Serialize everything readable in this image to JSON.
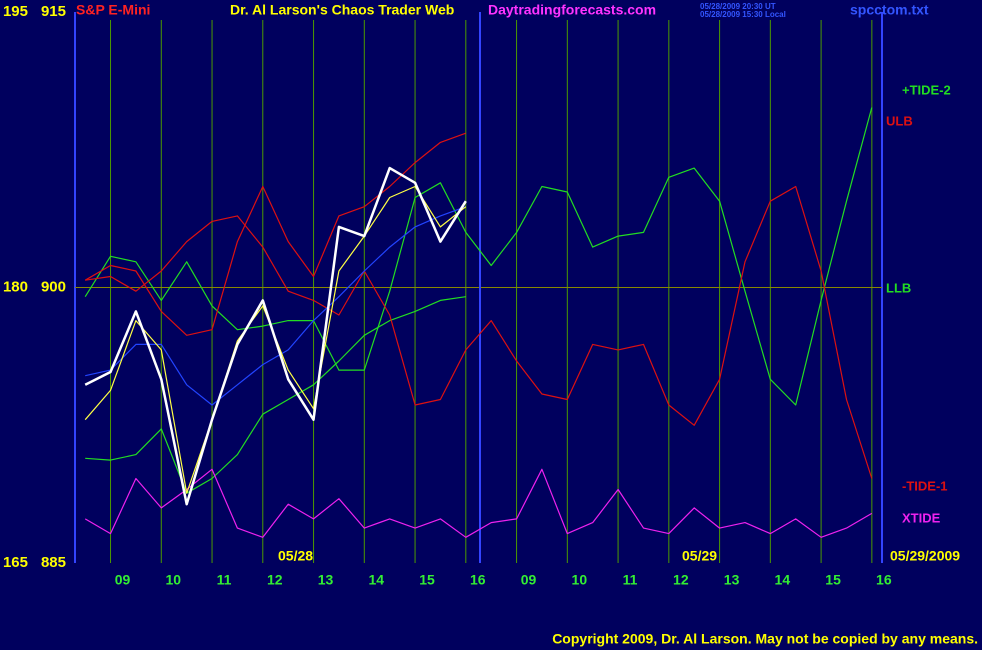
{
  "chart_data": {
    "type": "line",
    "symbol": "S&P E-Mini",
    "title": "Dr. Al Larson's Chaos Trader Web",
    "site": "Daytradingforecasts.com",
    "timestamps": [
      "05/28/2009 20:30 UT",
      "05/28/2009 15:30 Local"
    ],
    "file": "spcctom.txt",
    "annotations": [
      "05/28",
      "05/29",
      "05/29/2009"
    ],
    "copyright": "Copyright 2009, Dr. Al Larson. May not be copied by any means.",
    "xlim": [
      -0.7,
      15.2
    ],
    "xticks": [
      {
        "value": 0,
        "label": "09"
      },
      {
        "value": 1,
        "label": "10"
      },
      {
        "value": 2,
        "label": "11"
      },
      {
        "value": 3,
        "label": "12"
      },
      {
        "value": 4,
        "label": "13"
      },
      {
        "value": 5,
        "label": "14"
      },
      {
        "value": 6,
        "label": "15"
      },
      {
        "value": 7,
        "label": "16"
      },
      {
        "value": 8,
        "label": "09"
      },
      {
        "value": 9,
        "label": "10"
      },
      {
        "value": 10,
        "label": "11"
      },
      {
        "value": 11,
        "label": "12"
      },
      {
        "value": 12,
        "label": "13"
      },
      {
        "value": 13,
        "label": "14"
      },
      {
        "value": 14,
        "label": "15"
      },
      {
        "value": 15,
        "label": "16"
      }
    ],
    "ylim": [
      885,
      915
    ],
    "yticks": [
      885,
      900,
      915
    ],
    "y2lim": [
      165,
      195
    ],
    "y2ticks": [
      165,
      180,
      195
    ],
    "grid": true,
    "x": [
      -0.5,
      0,
      0.5,
      1,
      1.5,
      2,
      2.5,
      3,
      3.5,
      4,
      4.5,
      5,
      5.5,
      6,
      6.5,
      7,
      7.5,
      8,
      8.5,
      9,
      9.5,
      10,
      10.5,
      11,
      11.5,
      12,
      12.5,
      13,
      13.5,
      14,
      14.5,
      15
    ],
    "series": [
      {
        "name": "+TIDE-2",
        "color": "#22dd22",
        "values": [
          899.5,
          901.7,
          901.4,
          899.3,
          901.4,
          899.0,
          897.7,
          897.9,
          898.2,
          898.2,
          895.5,
          895.5,
          899.8,
          904.9,
          905.7,
          903.0,
          901.2,
          903.0,
          905.5,
          905.2,
          902.2,
          902.8,
          903.0,
          906.0,
          906.5,
          904.7,
          899.8,
          895.0,
          893.6,
          899.3,
          904.7,
          909.8
        ]
      },
      {
        "name": "ULB",
        "color": "#dd1111",
        "values": [
          900.4,
          901.2,
          900.9,
          898.7,
          897.4,
          897.7,
          902.5,
          905.5,
          902.5,
          900.6,
          903.9,
          904.4,
          905.5,
          906.8,
          907.9,
          908.4,
          null,
          null,
          null,
          null,
          null,
          null,
          null,
          null,
          null,
          null,
          null,
          null,
          null,
          null,
          null,
          null
        ]
      },
      {
        "name": "LLB",
        "color": "#22dd22",
        "values": [
          890.7,
          890.6,
          890.9,
          892.3,
          888.8,
          889.6,
          890.9,
          893.1,
          893.9,
          894.7,
          896.0,
          897.4,
          898.2,
          898.7,
          899.3,
          899.5,
          null,
          null,
          null,
          null,
          null,
          null,
          null,
          null,
          null,
          null,
          null,
          null,
          null,
          null,
          null,
          null
        ]
      },
      {
        "name": "-TIDE-1",
        "color": "#dd1111",
        "values": [
          900.4,
          900.6,
          899.8,
          900.9,
          902.5,
          903.6,
          903.9,
          902.2,
          899.8,
          899.3,
          898.5,
          900.9,
          898.5,
          893.6,
          893.9,
          896.6,
          898.2,
          896.0,
          894.2,
          893.9,
          896.9,
          896.6,
          896.9,
          893.6,
          892.5,
          895.0,
          901.4,
          904.7,
          905.5,
          900.9,
          893.9,
          889.6
        ]
      },
      {
        "name": "XTIDE",
        "color": "#ee22ee",
        "values": [
          887.4,
          886.6,
          889.6,
          888.0,
          889.0,
          890.1,
          886.9,
          886.4,
          888.2,
          887.4,
          888.5,
          886.9,
          887.4,
          886.9,
          887.4,
          886.4,
          887.2,
          887.4,
          890.1,
          886.6,
          887.2,
          889.0,
          886.9,
          886.6,
          888.0,
          886.9,
          887.2,
          886.6,
          887.4,
          886.4,
          886.9,
          887.7
        ]
      },
      {
        "color": "#2244ff",
        "values": [
          895.2,
          895.5,
          896.9,
          896.9,
          894.7,
          893.6,
          894.7,
          895.8,
          896.6,
          898.2,
          899.5,
          900.9,
          902.2,
          903.3,
          903.9,
          904.4,
          null,
          null,
          null,
          null,
          null,
          null,
          null,
          null,
          null,
          null,
          null,
          null,
          null,
          null,
          null,
          null
        ]
      },
      {
        "color": "#ffff44",
        "values": [
          892.8,
          894.4,
          898.2,
          896.6,
          888.8,
          892.8,
          897.1,
          899.0,
          895.5,
          893.4,
          900.9,
          902.8,
          904.9,
          905.5,
          903.3,
          904.4,
          null,
          null,
          null,
          null,
          null,
          null,
          null,
          null,
          null,
          null,
          null,
          null,
          null,
          null,
          null,
          null
        ]
      },
      {
        "color": "#ffffff",
        "values": [
          894.7,
          895.4,
          898.7,
          895.0,
          888.2,
          892.8,
          896.9,
          899.3,
          895.0,
          892.8,
          903.3,
          902.8,
          906.5,
          905.7,
          902.5,
          904.7,
          null,
          null,
          null,
          null,
          null,
          null,
          null,
          null,
          null,
          null,
          null,
          null,
          null,
          null,
          null,
          null
        ]
      }
    ]
  }
}
